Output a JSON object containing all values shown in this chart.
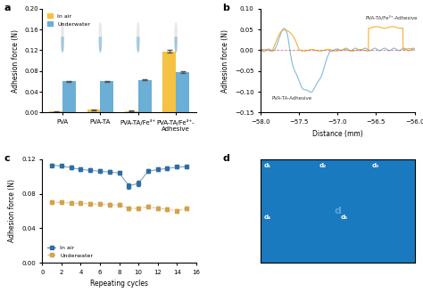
{
  "panel_a": {
    "categories": [
      "PVA",
      "PVA-TA",
      "PVA-TA/Fe³⁺",
      "PVA-TA/Fe³⁺-\nAdhesive"
    ],
    "in_air": [
      0.002,
      0.005,
      0.003,
      0.118
    ],
    "underwater": [
      0.06,
      0.06,
      0.063,
      0.078
    ],
    "in_air_err": [
      0.001,
      0.001,
      0.001,
      0.003
    ],
    "underwater_err": [
      0.001,
      0.001,
      0.001,
      0.002
    ],
    "ylabel": "Adhesion force (N)",
    "ylim": [
      0,
      0.2
    ],
    "yticks": [
      0.0,
      0.04,
      0.08,
      0.12,
      0.16,
      0.2
    ],
    "color_air": "#F5C242",
    "color_water": "#6BAED6",
    "legend_air": "In air",
    "legend_water": "Underwater"
  },
  "panel_b": {
    "ylabel": "Adhesion force (N)",
    "xlabel": "Distance (mm)",
    "ylim": [
      -0.15,
      0.1
    ],
    "xlim": [
      -58.0,
      -56.0
    ],
    "yticks": [
      -0.15,
      -0.1,
      -0.05,
      0.0,
      0.05,
      0.1
    ],
    "xticks": [
      -58.0,
      -57.5,
      -57.0,
      -56.5,
      -56.0
    ],
    "color_blue": "#6BAED6",
    "color_orange": "#F5A623",
    "label_blue": "PVA-TA-Adhesive",
    "label_orange": "PVA-TA/Fe³⁺-Adhesive"
  },
  "panel_c": {
    "x": [
      1,
      2,
      3,
      4,
      5,
      6,
      7,
      8,
      9,
      10,
      11,
      12,
      13,
      14,
      15
    ],
    "in_air": [
      0.113,
      0.112,
      0.11,
      0.108,
      0.107,
      0.106,
      0.105,
      0.104,
      0.089,
      0.092,
      0.106,
      0.108,
      0.109,
      0.111,
      0.111
    ],
    "underwater": [
      0.07,
      0.07,
      0.069,
      0.069,
      0.068,
      0.068,
      0.067,
      0.067,
      0.063,
      0.063,
      0.065,
      0.063,
      0.062,
      0.06,
      0.063
    ],
    "in_air_err": [
      0.002,
      0.002,
      0.002,
      0.002,
      0.002,
      0.002,
      0.002,
      0.002,
      0.003,
      0.003,
      0.002,
      0.002,
      0.002,
      0.002,
      0.002
    ],
    "underwater_err": [
      0.002,
      0.002,
      0.002,
      0.002,
      0.002,
      0.002,
      0.002,
      0.002,
      0.002,
      0.002,
      0.002,
      0.002,
      0.002,
      0.002,
      0.002
    ],
    "ylabel": "Adhesion force (N)",
    "xlabel": "Repeating cycles",
    "ylim": [
      0.0,
      0.12
    ],
    "yticks": [
      0.0,
      0.04,
      0.08,
      0.12
    ],
    "color_air": "#2E6DA4",
    "color_water": "#D4A24C",
    "legend_air": "In air",
    "legend_water": "Underwater"
  },
  "background": "#F5F5F5"
}
